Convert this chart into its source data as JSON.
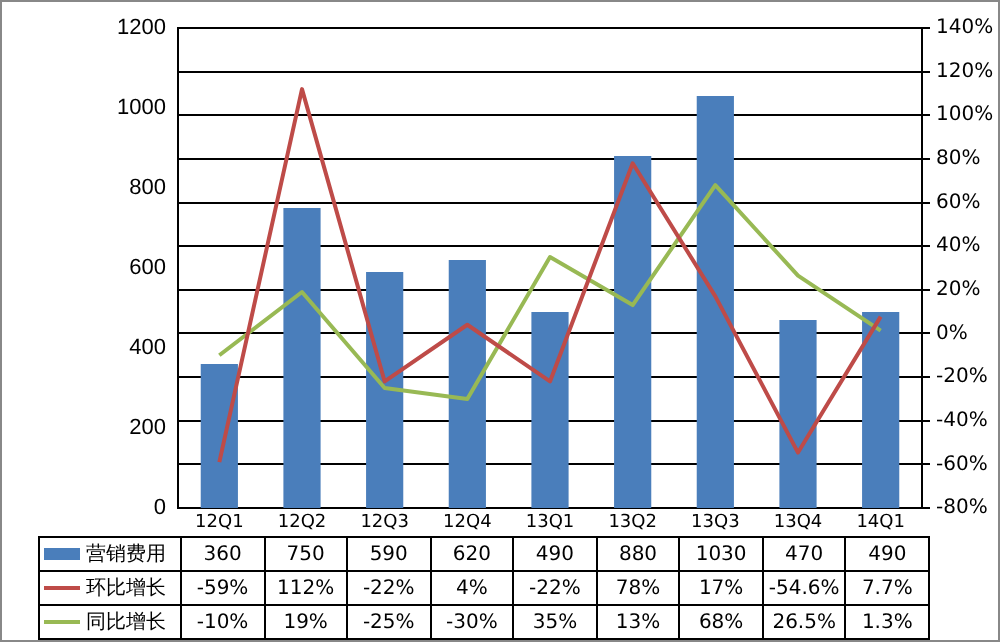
{
  "chart_data": {
    "type": "bar",
    "categories": [
      "12Q1",
      "12Q2",
      "12Q3",
      "12Q4",
      "13Q1",
      "13Q2",
      "13Q3",
      "13Q4",
      "14Q1"
    ],
    "series": [
      {
        "name": "营销费用",
        "color": "#4a7ebb",
        "values": [
          360,
          750,
          590,
          620,
          490,
          880,
          1030,
          470,
          490
        ],
        "value_labels": [
          "360",
          "750",
          "590",
          "620",
          "490",
          "880",
          "1030",
          "470",
          "490"
        ]
      },
      {
        "name": "环比增长",
        "type": "line",
        "axis": "y2",
        "color": "#be4b48",
        "values": [
          -59,
          112,
          -22,
          4,
          -22,
          78,
          17,
          -54.6,
          7.7
        ],
        "value_labels": [
          "-59%",
          "112%",
          "-22%",
          "4%",
          "-22%",
          "78%",
          "17%",
          "-54.6%",
          "7.7%"
        ]
      },
      {
        "name": "同比增长",
        "type": "line",
        "axis": "y2",
        "color": "#98b954",
        "values": [
          -10,
          19,
          -25,
          -30,
          35,
          13,
          68,
          26.5,
          1.3
        ],
        "value_labels": [
          "-10%",
          "19%",
          "-25%",
          "-30%",
          "35%",
          "13%",
          "68%",
          "26.5%",
          "1.3%"
        ]
      }
    ],
    "ylim": [
      0,
      1200
    ],
    "yticks": [
      0,
      200,
      400,
      600,
      800,
      1000,
      1200
    ],
    "y2lim": [
      -80,
      140
    ],
    "y2ticks": [
      {
        "value": -80,
        "label": "-80%"
      },
      {
        "value": -60,
        "label": "-60%"
      },
      {
        "value": -40,
        "label": "-40%"
      },
      {
        "value": -20,
        "label": "-20%"
      },
      {
        "value": 0,
        "label": "0%"
      },
      {
        "value": 20,
        "label": "20%"
      },
      {
        "value": 40,
        "label": "40%"
      },
      {
        "value": 60,
        "label": "60%"
      },
      {
        "value": 80,
        "label": "80%"
      },
      {
        "value": 100,
        "label": "100%"
      },
      {
        "value": 120,
        "label": "120%"
      },
      {
        "value": 140,
        "label": "140%"
      }
    ],
    "grid": true,
    "legend": "bottom",
    "marker": "none",
    "line_style": "solid"
  }
}
